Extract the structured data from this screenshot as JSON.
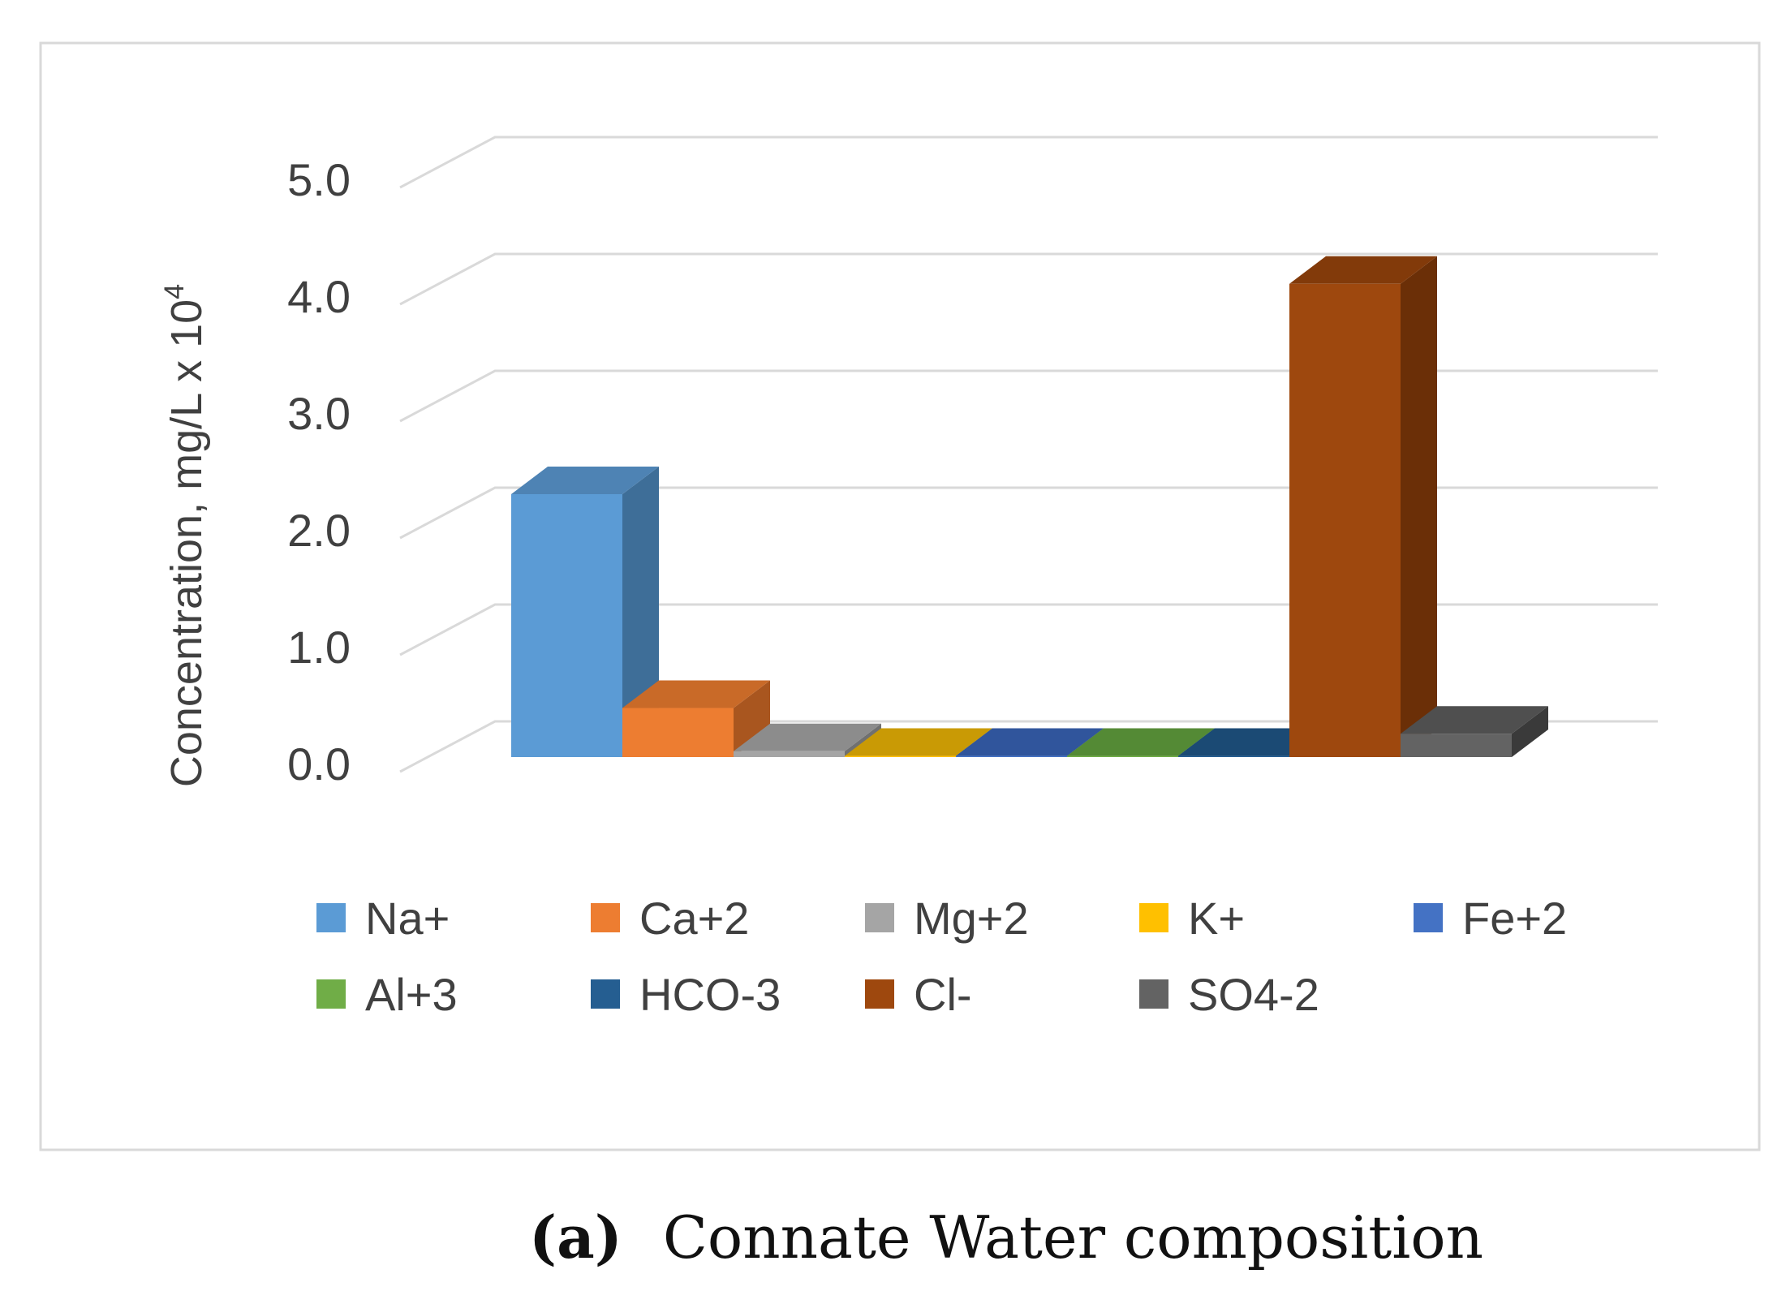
{
  "chart_data": {
    "type": "bar",
    "style": "3d-column",
    "title": "",
    "xlabel": "",
    "ylabel": "Concentration, mg/L  x 10",
    "ylabel_exponent": "4",
    "ylim": [
      0,
      5
    ],
    "yticks": [
      "0.0",
      "1.0",
      "2.0",
      "3.0",
      "4.0",
      "5.0"
    ],
    "grid": true,
    "legend_position": "bottom",
    "categories": [
      "Na+",
      "Ca+2",
      "Mg+2",
      "K+",
      "Fe+2",
      "Al+3",
      "HCO-3",
      "Cl-",
      "SO4-2"
    ],
    "series": [
      {
        "name": "Na+",
        "value": 2.25,
        "color": "#5B9BD5",
        "side": "#3E6E98",
        "top": "#4E83B4"
      },
      {
        "name": "Ca+2",
        "value": 0.42,
        "color": "#ED7D31",
        "side": "#A9561F",
        "top": "#C96A28"
      },
      {
        "name": "Mg+2",
        "value": 0.05,
        "color": "#A5A5A5",
        "side": "#707070",
        "top": "#8C8C8C"
      },
      {
        "name": "K+",
        "value": 0.01,
        "color": "#FFC000",
        "side": "#A88000",
        "top": "#C99A05"
      },
      {
        "name": "Fe+2",
        "value": 0.01,
        "color": "#4472C4",
        "side": "#2C4E8C",
        "top": "#30559C"
      },
      {
        "name": "Al+3",
        "value": 0.01,
        "color": "#70AD47",
        "side": "#4A7A2E",
        "top": "#548A35"
      },
      {
        "name": "HCO-3",
        "value": 0.01,
        "color": "#255E91",
        "side": "#163E63",
        "top": "#1B4A74"
      },
      {
        "name": "Cl-",
        "value": 4.05,
        "color": "#9E480E",
        "side": "#6B2F07",
        "top": "#823A0A"
      },
      {
        "name": "SO4-2",
        "value": 0.2,
        "color": "#636363",
        "side": "#3A3A3A",
        "top": "#4F4F4F"
      }
    ]
  },
  "caption": {
    "label": "(a)",
    "text": "Connate Water composition"
  }
}
